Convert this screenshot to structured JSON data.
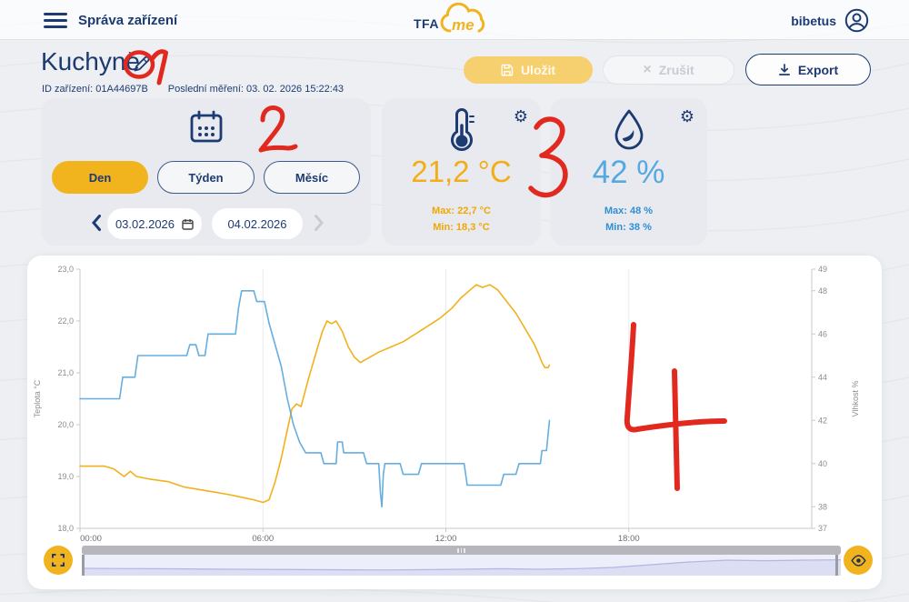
{
  "header": {
    "menu_title": "Správa zařízení",
    "logo_tfa": "TFA",
    "logo_me": "me",
    "username": "bibetus"
  },
  "device": {
    "name": "Kuchyně",
    "id_line": "ID zařízení: 01A44697B",
    "last_measurement": "Poslední měření: 03. 02. 2026 15:22:43"
  },
  "toolbar": {
    "save_label": "Uložit",
    "cancel_label": "Zrušit",
    "cancel_icon": "×",
    "export_label": "Export"
  },
  "period": {
    "day": "Den",
    "week": "Týden",
    "month": "Měsíc",
    "date_from": "03.02.2026",
    "date_to": "04.02.2026"
  },
  "temperature": {
    "value": "21,2 °C",
    "max": "Max: 22,7 °C",
    "min": "Min: 18,3 °C",
    "accent": "#f2ae19"
  },
  "humidity": {
    "value": "42 %",
    "max": "Max: 48 %",
    "min": "Min: 38 %",
    "accent": "#55a8e1"
  },
  "annotations": {
    "color": "#e1291f",
    "marks": [
      "circle-around-edit-icon",
      "1",
      "2",
      "3",
      "4"
    ]
  },
  "navigator": {
    "points": [
      [
        0,
        0.35
      ],
      [
        0.1,
        0.33
      ],
      [
        0.2,
        0.3
      ],
      [
        0.3,
        0.28
      ],
      [
        0.4,
        0.26
      ],
      [
        0.5,
        0.3
      ],
      [
        0.55,
        0.33
      ],
      [
        0.6,
        0.3
      ],
      [
        0.65,
        0.33
      ],
      [
        0.7,
        0.4
      ],
      [
        0.75,
        0.55
      ],
      [
        0.8,
        0.7
      ],
      [
        0.85,
        0.8
      ],
      [
        0.9,
        0.77
      ],
      [
        0.95,
        0.8
      ],
      [
        1,
        0.82
      ]
    ]
  },
  "chart_data": {
    "type": "line",
    "title": "",
    "x_axis": {
      "range_hours": [
        0,
        24
      ],
      "tick_hours": [
        0,
        6,
        12,
        18
      ],
      "tick_labels": [
        "00:00",
        "06:00",
        "12:00",
        "18:00"
      ],
      "gridline_hours": [
        6,
        12,
        18
      ]
    },
    "left_axis": {
      "label": "Teplota °C",
      "range": [
        18,
        23
      ],
      "tick_values": [
        18,
        19,
        20,
        21,
        22,
        23
      ],
      "tick_labels": [
        "18,0",
        "19,0",
        "20,0",
        "21,0",
        "22,0",
        "23,0"
      ]
    },
    "right_axis": {
      "label": "Vlhkost %",
      "range": [
        37,
        49
      ],
      "tick_values": [
        37,
        38,
        40,
        42,
        44,
        46,
        48,
        49
      ],
      "tick_labels": [
        "37",
        "38",
        "40",
        "42",
        "44",
        "46",
        "48",
        "49"
      ]
    },
    "grid": "vertical-only",
    "legend": "none",
    "series": [
      {
        "name": "Teplota °C",
        "color": "#f2b11c",
        "axis": "left",
        "points": [
          [
            0,
            19.2
          ],
          [
            0.8,
            19.2
          ],
          [
            1.1,
            19.15
          ],
          [
            1.45,
            19.0
          ],
          [
            1.65,
            19.1
          ],
          [
            1.85,
            19.0
          ],
          [
            2.3,
            18.95
          ],
          [
            2.9,
            18.9
          ],
          [
            3.4,
            18.8
          ],
          [
            3.9,
            18.75
          ],
          [
            4.4,
            18.7
          ],
          [
            4.9,
            18.65
          ],
          [
            5.3,
            18.6
          ],
          [
            5.7,
            18.55
          ],
          [
            6.0,
            18.5
          ],
          [
            6.2,
            18.55
          ],
          [
            6.4,
            18.9
          ],
          [
            6.6,
            19.35
          ],
          [
            6.8,
            19.9
          ],
          [
            6.95,
            20.3
          ],
          [
            7.1,
            20.4
          ],
          [
            7.25,
            20.35
          ],
          [
            7.5,
            20.9
          ],
          [
            7.75,
            21.4
          ],
          [
            7.95,
            21.8
          ],
          [
            8.1,
            22.0
          ],
          [
            8.25,
            21.95
          ],
          [
            8.4,
            22.0
          ],
          [
            8.6,
            21.8
          ],
          [
            8.8,
            21.5
          ],
          [
            9.0,
            21.3
          ],
          [
            9.2,
            21.2
          ],
          [
            9.5,
            21.3
          ],
          [
            9.8,
            21.4
          ],
          [
            10.2,
            21.5
          ],
          [
            10.6,
            21.6
          ],
          [
            11.0,
            21.75
          ],
          [
            11.4,
            21.9
          ],
          [
            11.8,
            22.05
          ],
          [
            12.2,
            22.25
          ],
          [
            12.5,
            22.45
          ],
          [
            12.8,
            22.6
          ],
          [
            13.0,
            22.7
          ],
          [
            13.2,
            22.65
          ],
          [
            13.45,
            22.7
          ],
          [
            13.7,
            22.6
          ],
          [
            13.9,
            22.45
          ],
          [
            14.1,
            22.3
          ],
          [
            14.3,
            22.15
          ],
          [
            14.5,
            21.95
          ],
          [
            14.7,
            21.75
          ],
          [
            14.9,
            21.55
          ],
          [
            15.05,
            21.35
          ],
          [
            15.15,
            21.2
          ],
          [
            15.25,
            21.1
          ],
          [
            15.35,
            21.1
          ],
          [
            15.4,
            21.15
          ]
        ]
      },
      {
        "name": "Vlhkost %",
        "color": "#66ade0",
        "axis": "right",
        "points": [
          [
            0,
            43
          ],
          [
            1.3,
            43
          ],
          [
            1.4,
            44
          ],
          [
            1.8,
            44
          ],
          [
            1.9,
            45
          ],
          [
            3.5,
            45
          ],
          [
            3.6,
            45.5
          ],
          [
            3.8,
            45.5
          ],
          [
            3.9,
            45
          ],
          [
            4.1,
            45
          ],
          [
            4.2,
            46
          ],
          [
            5.1,
            46
          ],
          [
            5.2,
            47.2
          ],
          [
            5.3,
            48
          ],
          [
            5.7,
            48
          ],
          [
            5.8,
            47.5
          ],
          [
            6.05,
            47.5
          ],
          [
            6.2,
            46.5
          ],
          [
            6.4,
            45.5
          ],
          [
            6.6,
            44.5
          ],
          [
            6.8,
            43
          ],
          [
            7.0,
            41.8
          ],
          [
            7.2,
            41
          ],
          [
            7.4,
            40.5
          ],
          [
            7.9,
            40.5
          ],
          [
            8.0,
            40
          ],
          [
            8.4,
            40
          ],
          [
            8.45,
            41
          ],
          [
            8.6,
            41
          ],
          [
            8.65,
            40.5
          ],
          [
            9.3,
            40.5
          ],
          [
            9.4,
            40
          ],
          [
            9.8,
            40
          ],
          [
            9.85,
            38.7
          ],
          [
            9.9,
            38
          ],
          [
            9.95,
            39.5
          ],
          [
            10.0,
            40
          ],
          [
            10.5,
            40
          ],
          [
            10.6,
            39.5
          ],
          [
            11.1,
            39.5
          ],
          [
            11.2,
            40
          ],
          [
            12.6,
            40
          ],
          [
            12.7,
            39
          ],
          [
            13.8,
            39
          ],
          [
            13.9,
            39.5
          ],
          [
            14.3,
            39.5
          ],
          [
            14.4,
            40
          ],
          [
            15.1,
            40
          ],
          [
            15.15,
            40.6
          ],
          [
            15.3,
            40.6
          ],
          [
            15.4,
            42
          ]
        ]
      }
    ]
  }
}
